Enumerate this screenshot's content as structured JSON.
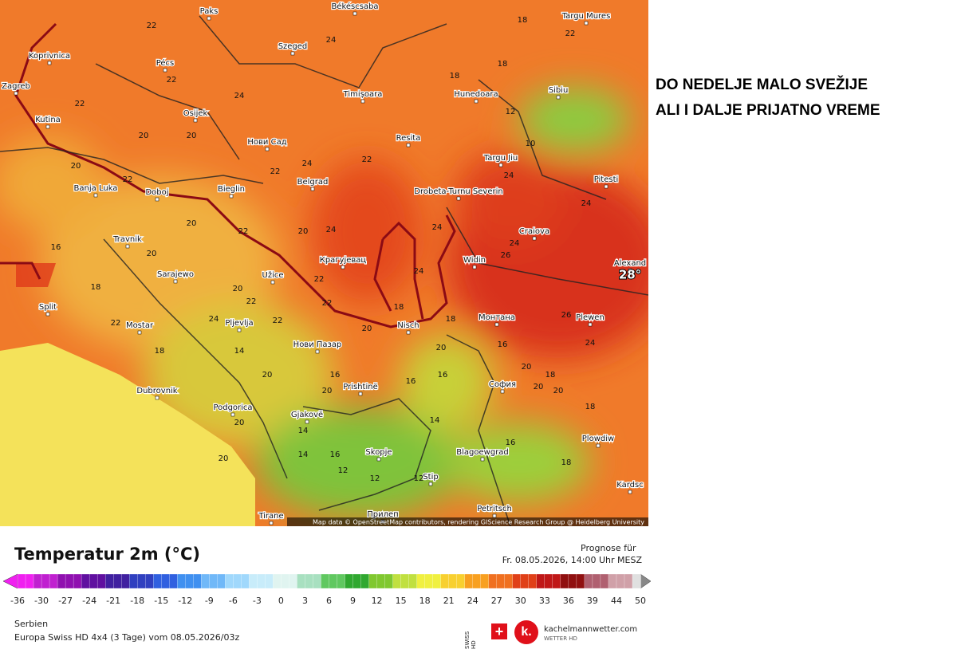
{
  "header": {
    "line1": "DO NEDELJE MALO SVEŽIJE",
    "line2": "ALI I DALJE PRIJATNO VREME"
  },
  "map": {
    "cities": [
      "Paks",
      "Békéscsaba",
      "Targu Mures",
      "Koprivnica",
      "Pécs",
      "Szeged",
      "Zagreb",
      "Kutina",
      "Osijek",
      "Timișoara",
      "Hunedoara",
      "Sibiu",
      "Нови Сад",
      "Resita",
      "Targu Jiu",
      "Banja Luka",
      "Doboj",
      "Bieglin",
      "Belgrad",
      "Drobeta-Turnu Severin",
      "Pitesti",
      "Craiova",
      "Travnik",
      "Sarajewo",
      "Крагујевац",
      "Užice",
      "Widin",
      "Alexand",
      "Split",
      "Mostar",
      "Pljevlja",
      "Nisch",
      "Монтана",
      "Plewen",
      "Нови Пазар",
      "Dubrovnik",
      "София",
      "Prishtinë",
      "Podgorica",
      "Gjakovë",
      "Plowdiw",
      "Skopje",
      "Blagoewgrad",
      "Stip",
      "Petritsch",
      "Tirane",
      "Прилеп",
      "Kardsc"
    ],
    "temperatures": [
      22,
      18,
      22,
      24,
      22,
      22,
      24,
      20,
      22,
      20,
      18,
      18,
      22,
      22,
      24,
      20,
      24,
      20,
      20,
      24,
      24,
      26,
      20,
      24,
      22,
      22,
      24,
      20,
      18,
      22,
      24,
      22,
      18,
      16,
      20,
      20,
      18,
      26,
      16,
      24,
      20,
      22,
      20,
      18,
      16,
      20,
      16,
      18,
      14,
      14,
      20,
      18,
      16,
      12,
      14,
      20,
      18,
      20,
      16,
      12,
      14,
      24,
      22,
      20,
      12,
      10,
      12,
      16
    ],
    "max_label": "28°",
    "attribution": "Map data © OpenStreetMap contributors, rendering GIScience Research Group @ Heidelberg University"
  },
  "legend": {
    "title": "Temperatur 2m (°C)",
    "ticks": [
      -36,
      -30,
      -27,
      -24,
      -21,
      -18,
      -15,
      -12,
      -9,
      -6,
      -3,
      0,
      3,
      6,
      9,
      12,
      15,
      18,
      21,
      24,
      27,
      30,
      33,
      36,
      39,
      44,
      50
    ]
  },
  "footer": {
    "forecast_label": "Prognose für",
    "forecast_time": "Fr. 08.05.2026, 14:00 Uhr MESZ",
    "region": "Serbien",
    "model": "Europa Swiss HD 4x4 (3 Tage) vom 08.05.2026/03z",
    "brand": "kachelmannwetter.com",
    "brand_sub": "WETTER HD",
    "swiss": "SWISS HD"
  }
}
